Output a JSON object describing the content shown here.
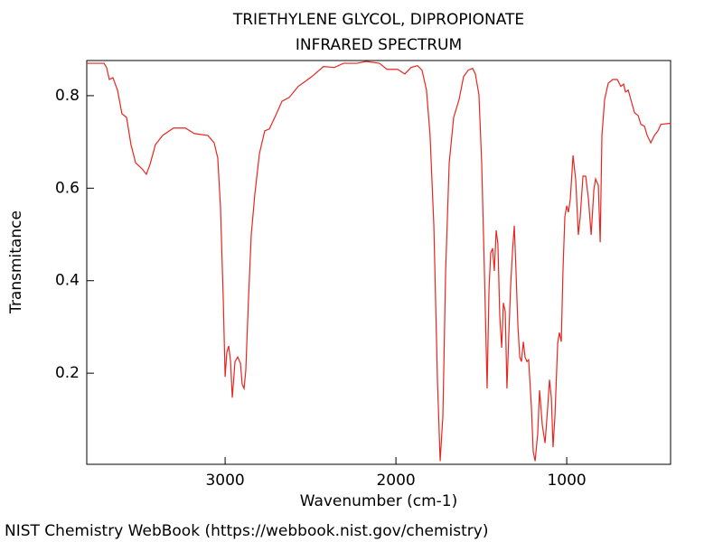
{
  "chart_data": {
    "type": "line",
    "title": "TRIETHYLENE GLYCOL, DIPROPIONATE",
    "subtitle": "INFRARED SPECTRUM",
    "x_label": "Wavenumber (cm-1)",
    "y_label": "Transmitance",
    "footer": "NIST Chemistry WebBook (https://webbook.nist.gov/chemistry)",
    "color": "#e8261f",
    "xlim": [
      3810,
      392
    ],
    "ylim": [
      0.003,
      0.876
    ],
    "xticks": [
      3000,
      2000,
      1000
    ],
    "yticks": [
      0.2,
      0.4,
      0.6,
      0.8
    ],
    "grid": false,
    "x": [
      3810,
      3709,
      3694,
      3678,
      3657,
      3630,
      3604,
      3577,
      3551,
      3524,
      3487,
      3461,
      3440,
      3408,
      3366,
      3302,
      3233,
      3180,
      3101,
      3064,
      3043,
      3027,
      3011,
      3000,
      2990,
      2979,
      2968,
      2958,
      2942,
      2926,
      2910,
      2900,
      2889,
      2879,
      2863,
      2847,
      2826,
      2799,
      2768,
      2741,
      2704,
      2667,
      2625,
      2572,
      2493,
      2424,
      2360,
      2307,
      2228,
      2175,
      2096,
      2053,
      1990,
      1948,
      1911,
      1874,
      1847,
      1821,
      1800,
      1778,
      1757,
      1741,
      1725,
      1709,
      1688,
      1662,
      1630,
      1604,
      1577,
      1551,
      1535,
      1514,
      1498,
      1482,
      1466,
      1455,
      1445,
      1434,
      1424,
      1413,
      1403,
      1392,
      1381,
      1371,
      1360,
      1350,
      1339,
      1328,
      1318,
      1307,
      1297,
      1286,
      1275,
      1265,
      1254,
      1244,
      1233,
      1223,
      1207,
      1196,
      1185,
      1170,
      1159,
      1143,
      1127,
      1111,
      1101,
      1090,
      1080,
      1069,
      1053,
      1043,
      1032,
      1022,
      1011,
      1000,
      990,
      979,
      963,
      947,
      932,
      921,
      905,
      889,
      873,
      857,
      841,
      831,
      815,
      804,
      794,
      778,
      757,
      730,
      704,
      683,
      667,
      656,
      640,
      625,
      603,
      582,
      566,
      545,
      529,
      508,
      487,
      466,
      449,
      402,
      392
    ],
    "values": [
      0.87,
      0.87,
      0.861,
      0.835,
      0.839,
      0.812,
      0.761,
      0.753,
      0.694,
      0.655,
      0.642,
      0.63,
      0.651,
      0.694,
      0.714,
      0.73,
      0.73,
      0.718,
      0.714,
      0.698,
      0.665,
      0.558,
      0.362,
      0.192,
      0.245,
      0.259,
      0.225,
      0.147,
      0.225,
      0.235,
      0.221,
      0.176,
      0.167,
      0.206,
      0.362,
      0.499,
      0.587,
      0.675,
      0.724,
      0.728,
      0.757,
      0.788,
      0.796,
      0.82,
      0.841,
      0.863,
      0.861,
      0.87,
      0.87,
      0.874,
      0.87,
      0.857,
      0.857,
      0.847,
      0.861,
      0.865,
      0.855,
      0.812,
      0.714,
      0.519,
      0.186,
      0.01,
      0.108,
      0.421,
      0.655,
      0.753,
      0.792,
      0.841,
      0.855,
      0.859,
      0.847,
      0.802,
      0.655,
      0.421,
      0.167,
      0.382,
      0.46,
      0.47,
      0.421,
      0.509,
      0.48,
      0.323,
      0.255,
      0.352,
      0.333,
      0.167,
      0.284,
      0.392,
      0.46,
      0.519,
      0.421,
      0.304,
      0.235,
      0.225,
      0.268,
      0.235,
      0.225,
      0.229,
      0.128,
      0.03,
      0.01,
      0.069,
      0.163,
      0.088,
      0.049,
      0.128,
      0.186,
      0.147,
      0.04,
      0.108,
      0.264,
      0.288,
      0.268,
      0.421,
      0.538,
      0.562,
      0.548,
      0.577,
      0.671,
      0.616,
      0.499,
      0.538,
      0.626,
      0.626,
      0.577,
      0.499,
      0.597,
      0.62,
      0.606,
      0.483,
      0.714,
      0.792,
      0.827,
      0.835,
      0.835,
      0.82,
      0.825,
      0.808,
      0.812,
      0.792,
      0.763,
      0.757,
      0.738,
      0.734,
      0.714,
      0.698,
      0.714,
      0.724,
      0.738,
      0.74,
      0.74
    ]
  }
}
